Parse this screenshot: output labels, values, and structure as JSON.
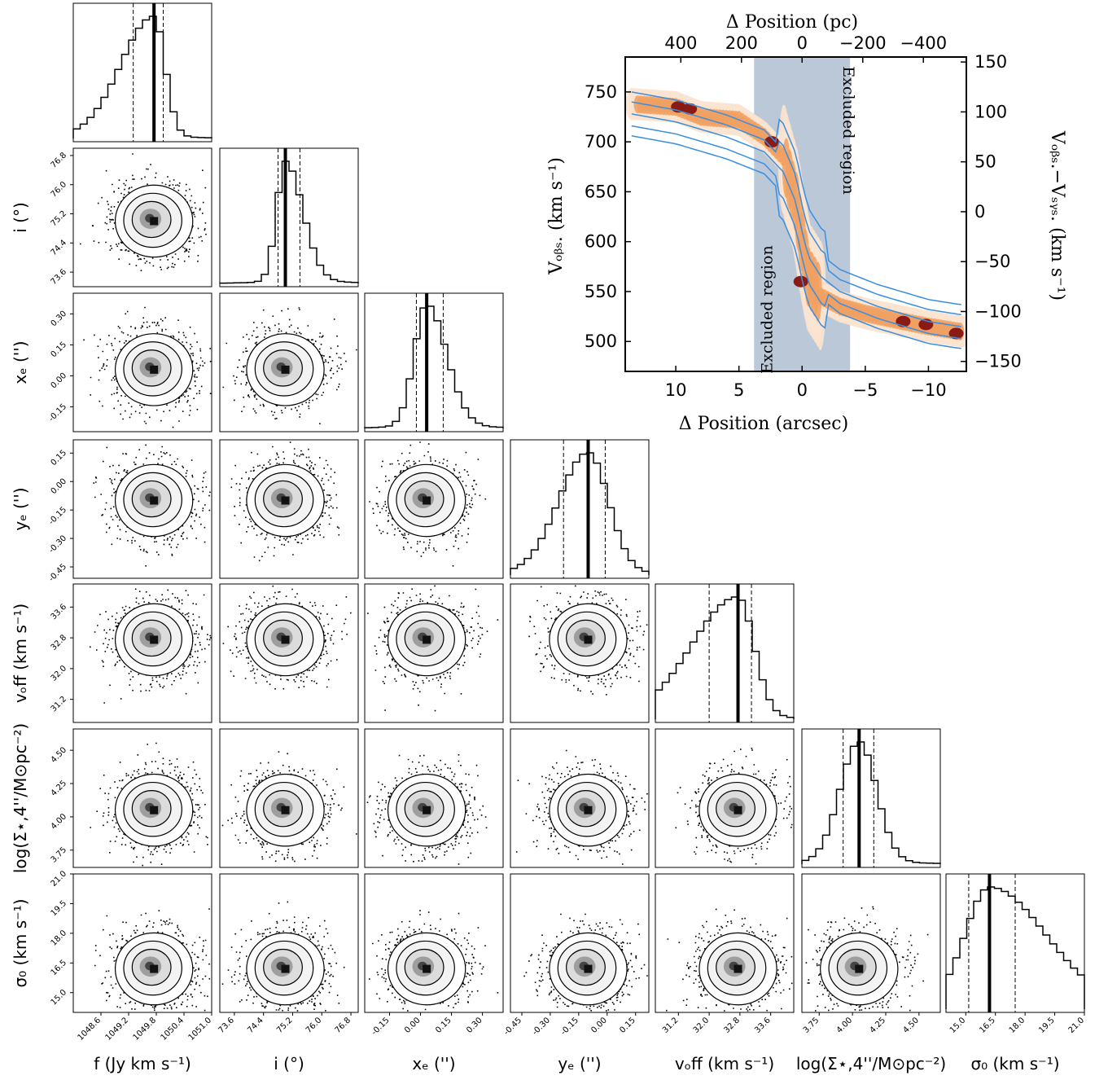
{
  "chart_data": [
    {
      "type": "corner",
      "parameters": [
        {
          "name": "f",
          "label": "f (Jy km s⁻¹)",
          "median": 1049.75,
          "lo": 1049.3,
          "hi": 1049.95,
          "ticks": [
            "1048.6",
            "1049.2",
            "1049.8",
            "1050.4",
            "1051.0"
          ],
          "range": [
            1048.0,
            1051.0
          ]
        },
        {
          "name": "i",
          "label": "i (°)",
          "median": 75.0,
          "lo": 74.8,
          "hi": 75.4,
          "ticks": [
            "73.6",
            "74.4",
            "75.2",
            "76.0",
            "76.8"
          ],
          "range": [
            73.2,
            77.0
          ]
        },
        {
          "name": "x_c",
          "label": "xₑ ('')",
          "median": 0.03,
          "lo": -0.02,
          "hi": 0.11,
          "ticks": [
            "-0.15",
            "0.00",
            "0.15",
            "0.30"
          ],
          "range": [
            -0.27,
            0.4
          ]
        },
        {
          "name": "y_c",
          "label": "yₑ ('')",
          "median": -0.1,
          "lo": -0.23,
          "hi": -0.01,
          "ticks": [
            "-0.45",
            "-0.30",
            "-0.15",
            "0.00",
            "0.15"
          ],
          "range": [
            -0.51,
            0.22
          ]
        },
        {
          "name": "v_off",
          "label": "vₒff (km s⁻¹)",
          "median": 32.75,
          "lo": 32.0,
          "hi": 33.1,
          "ticks": [
            "31.2",
            "32.0",
            "32.8",
            "33.6"
          ],
          "range": [
            30.6,
            34.2
          ]
        },
        {
          "name": "logSigma",
          "label": "log(Σ⋆,4''/M⊙pc⁻²)",
          "median": 4.05,
          "lo": 3.93,
          "hi": 4.16,
          "ticks": [
            "3.75",
            "4.00",
            "4.25",
            "4.50"
          ],
          "range": [
            3.62,
            4.66
          ]
        },
        {
          "name": "sigma0",
          "label": "σ₀ (km s⁻¹)",
          "median": 16.2,
          "lo": 15.15,
          "hi": 17.5,
          "ticks": [
            "15.0",
            "16.5",
            "18.0",
            "19.5",
            "21.0"
          ],
          "range": [
            14.0,
            21.0
          ]
        }
      ],
      "y_tick_labels": {
        "i": [
          "73.6",
          "74.4",
          "75.2",
          "76.0",
          "76.8"
        ],
        "x_c": [
          "-0.15",
          "0.00",
          "0.15",
          "0.30"
        ],
        "y_c": [
          "-0.45",
          "-0.30",
          "-0.15",
          "0.00",
          "0.15"
        ],
        "v_off": [
          "31.2",
          "32.0",
          "32.8",
          "33.6"
        ],
        "logSigma": [
          "3.75",
          "4.00",
          "4.25",
          "4.50"
        ],
        "sigma0": [
          "15.0",
          "16.5",
          "18.0",
          "19.5",
          "21.0"
        ]
      },
      "y_axis_labels": [
        "i (°)",
        "xₑ ('')",
        "yₑ ('')",
        "vₒff (km s⁻¹)",
        "log(Σ⋆,4''/M⊙pc⁻²)",
        "σ₀ (km s⁻¹)"
      ]
    },
    {
      "type": "position-velocity",
      "xlabel_bottom": "Δ Position (arcsec)",
      "xlabel_top": "Δ Position (pc)",
      "ylabel_left": "Vₒᵦₛ. (km s⁻¹)",
      "ylabel_right": "Vₒᵦₛ.−Vₛᵧₛ. (km s⁻¹)",
      "xlim": [
        14.0,
        -13.0
      ],
      "ylim": [
        470,
        785
      ],
      "bottom_ticks": [
        "10",
        "5",
        "0",
        "−5",
        "−10"
      ],
      "bottom_tick_values": [
        10,
        5,
        0,
        -5,
        -10
      ],
      "top_ticks": [
        "400",
        "200",
        "0",
        "−200",
        "−400"
      ],
      "top_tick_positions_arcsec": [
        9.6,
        4.8,
        0,
        -4.8,
        -9.6
      ],
      "left_ticks": [
        500,
        550,
        600,
        650,
        700,
        750
      ],
      "right_ticks": [
        "−150",
        "−100",
        "−50",
        "0",
        "50",
        "100",
        "150"
      ],
      "right_tick_values_kms": [
        -150,
        -100,
        -50,
        0,
        50,
        100,
        150
      ],
      "v_sys": 630,
      "excluded_band_arcsec": [
        3.8,
        -3.8
      ],
      "excluded_labels": [
        "Excluded region",
        "Excluded region"
      ],
      "emission_ridge": {
        "x": [
          13.5,
          10,
          8,
          5,
          3,
          1.5,
          0.5,
          0,
          -0.5,
          -1.5,
          -3,
          -5,
          -8,
          -10,
          -12.5
        ],
        "v": [
          738,
          735,
          725,
          722,
          705,
          685,
          640,
          600,
          565,
          545,
          535,
          528,
          520,
          515,
          510
        ]
      },
      "model_ridge": {
        "x": [
          13.5,
          10,
          6,
          3,
          1.5,
          0.5,
          0,
          -0.5,
          -1.5,
          -3,
          -6,
          -10,
          -12.5
        ],
        "v": [
          728,
          720,
          705,
          690,
          670,
          640,
          610,
          585,
          565,
          550,
          535,
          520,
          515
        ]
      },
      "colors": {
        "band": "#b4c2d4",
        "model": "#3a8ee0",
        "emission_low": "#fbe3cf",
        "emission_mid": "#f0a060",
        "emission_high": "#8a1a14"
      }
    }
  ]
}
